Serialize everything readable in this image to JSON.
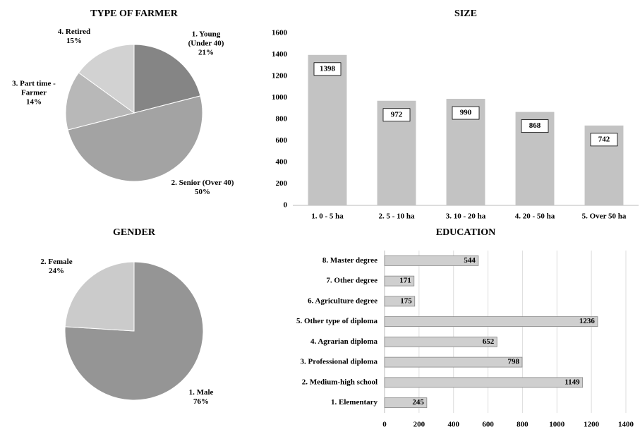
{
  "chart_data": [
    {
      "type": "pie",
      "title": "TYPE OF FARMER",
      "categories": [
        "1. Young (Under 40)",
        "2. Senior (Over 40)",
        "3. Part time - Farmer",
        "4. Retired"
      ],
      "values": [
        21,
        50,
        14,
        15
      ],
      "value_labels": [
        "21%",
        "50%",
        "14%",
        "15%"
      ],
      "colors": [
        "#858585",
        "#a3a3a3",
        "#b8b8b8",
        "#d2d2d2"
      ]
    },
    {
      "type": "bar",
      "title": "SIZE",
      "categories": [
        "1. 0 - 5 ha",
        "2. 5 - 10 ha",
        "3. 10 - 20 ha",
        "4. 20 - 50 ha",
        "5. Over 50 ha"
      ],
      "values": [
        1398,
        972,
        990,
        868,
        742
      ],
      "color": "#c3c3c3",
      "ylim": [
        0,
        1600
      ],
      "yticks": [
        0,
        200,
        400,
        600,
        800,
        1000,
        1200,
        1400,
        1600
      ],
      "grid": false
    },
    {
      "type": "pie",
      "title": "GENDER",
      "categories": [
        "1. Male",
        "2. Female"
      ],
      "values": [
        76,
        24
      ],
      "value_labels": [
        "76%",
        "24%"
      ],
      "colors": [
        "#959595",
        "#cbcbcb"
      ]
    },
    {
      "type": "hbar",
      "title": "EDUCATION",
      "categories": [
        "1. Elementary",
        "2. Medium-high school",
        "3. Professional diploma",
        "4. Agrarian diploma",
        "5. Other type of diploma",
        "6. Agriculture degree",
        "7. Other degree",
        "8. Master degree"
      ],
      "values": [
        245,
        1149,
        798,
        652,
        1236,
        175,
        171,
        544
      ],
      "color": "#cfcfcf",
      "xlim": [
        0,
        1400
      ],
      "xticks": [
        0,
        200,
        400,
        600,
        800,
        1000,
        1200,
        1400
      ],
      "grid": true
    }
  ]
}
